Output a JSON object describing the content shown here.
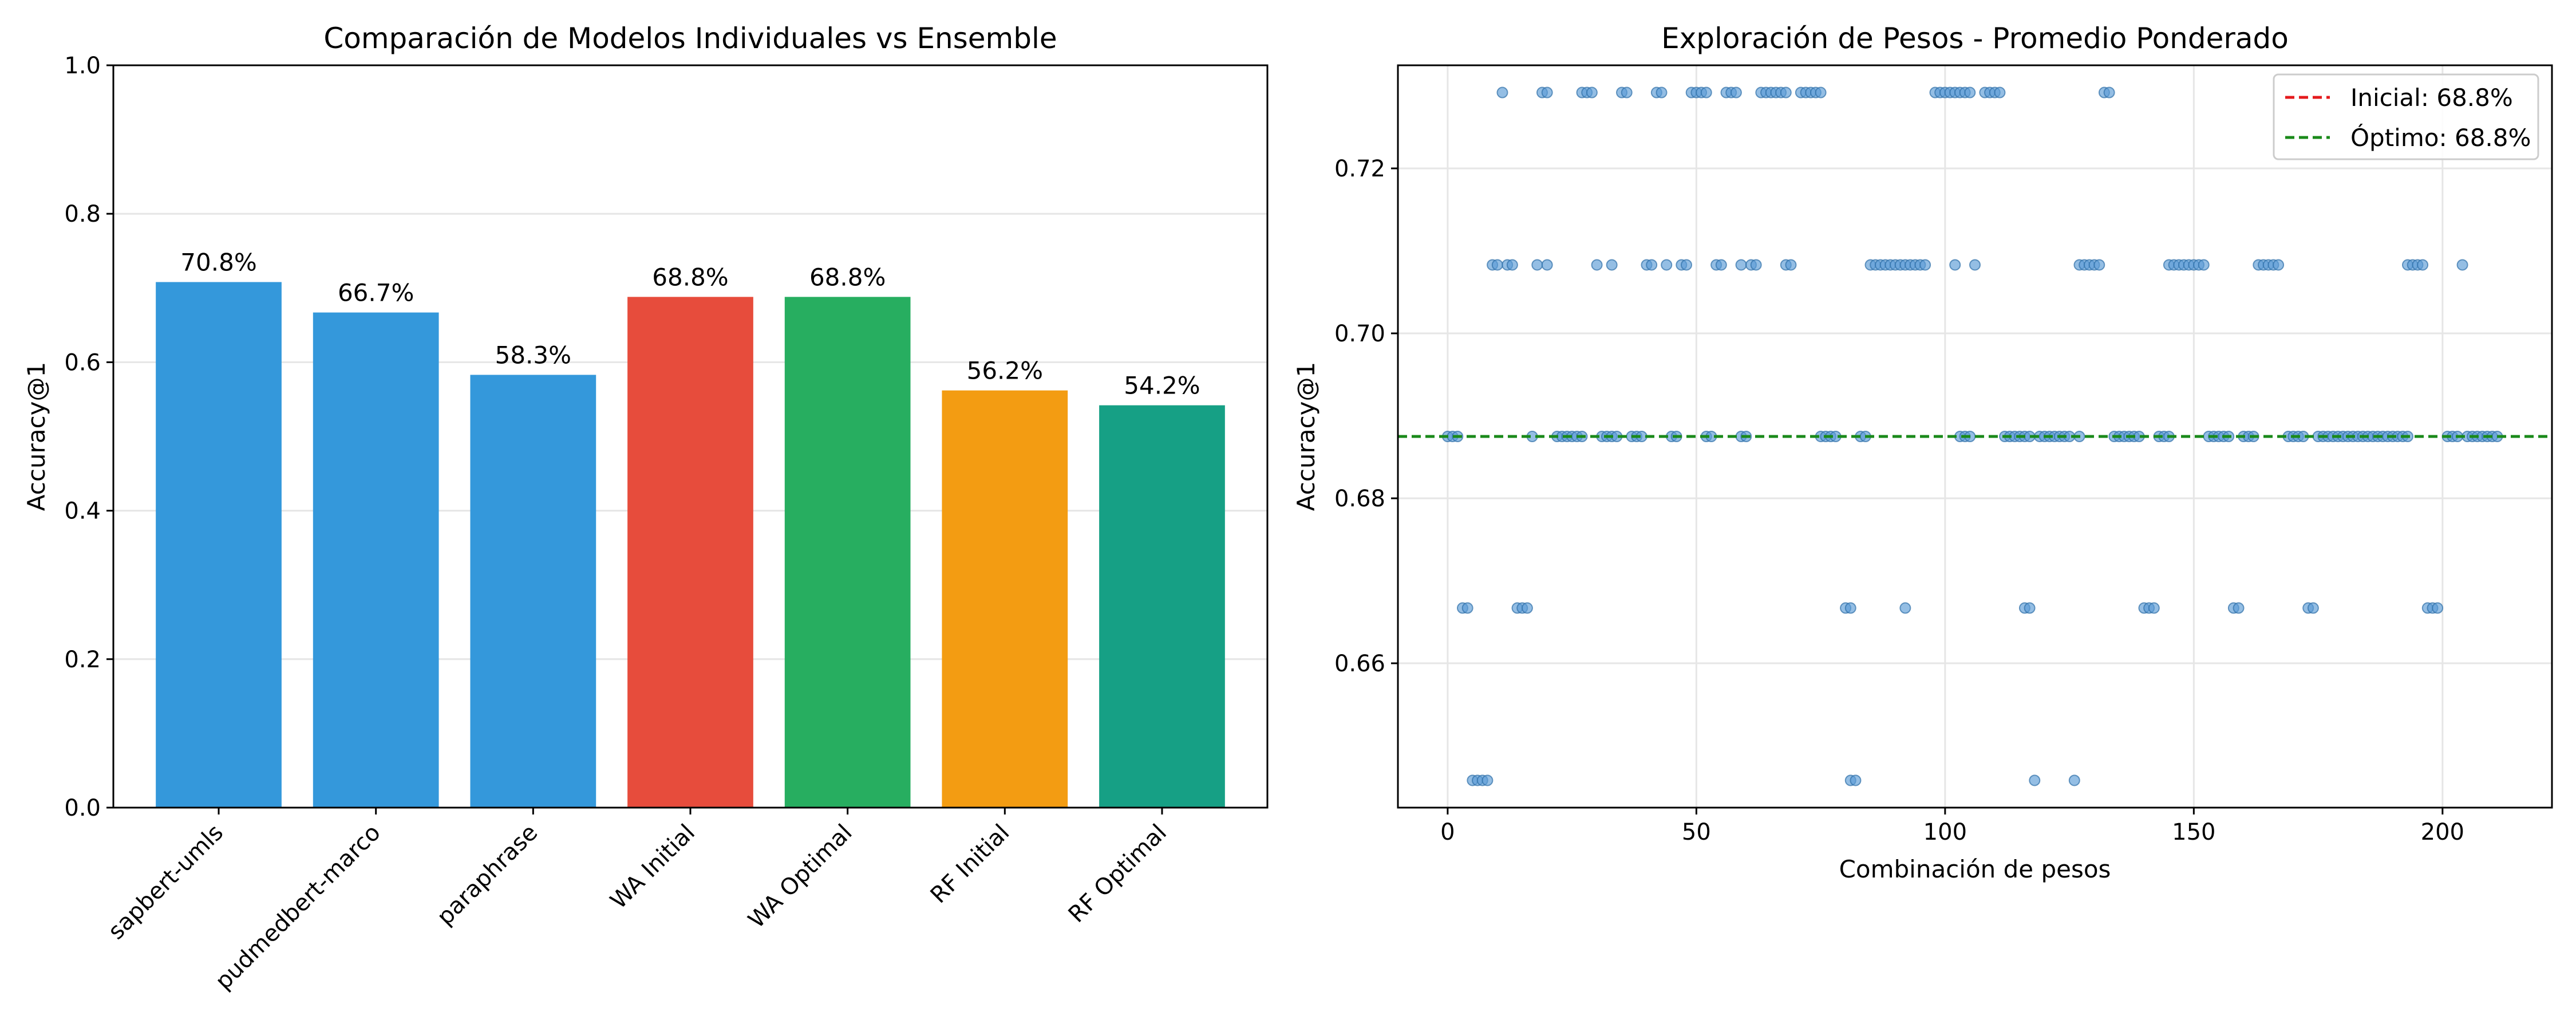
{
  "chart_data": [
    {
      "type": "bar",
      "title": "Comparación de Modelos Individuales vs Ensemble",
      "xlabel": "",
      "ylabel": "Accuracy@1",
      "ylim": [
        0,
        1.0
      ],
      "yticks": [
        "0.0",
        "0.2",
        "0.4",
        "0.6",
        "0.8",
        "1.0"
      ],
      "grid": "horizontal",
      "categories": [
        "sapbert-umls",
        "pudmedbert-marco",
        "paraphrase",
        "WA Initial",
        "WA Optimal",
        "RF Initial",
        "RF Optimal"
      ],
      "values": [
        0.708,
        0.667,
        0.583,
        0.688,
        0.688,
        0.562,
        0.542
      ],
      "value_labels": [
        "70.8%",
        "66.7%",
        "58.3%",
        "68.8%",
        "68.8%",
        "56.2%",
        "54.2%"
      ],
      "colors": [
        "#3498db",
        "#3498db",
        "#3498db",
        "#e74c3c",
        "#27ae60",
        "#f39c12",
        "#16a085"
      ]
    },
    {
      "type": "scatter",
      "title": "Exploración de Pesos - Promedio Ponderado",
      "xlabel": "Combinación de pesos",
      "ylabel": "Accuracy@1",
      "xlim": [
        -10,
        222
      ],
      "ylim": [
        0.6425,
        0.7325
      ],
      "xticks": [
        "0",
        "50",
        "100",
        "150",
        "200"
      ],
      "yticks": [
        "0.66",
        "0.68",
        "0.70",
        "0.72"
      ],
      "grid": "both",
      "legend_position": "top-right",
      "point_color": "#5a9bd5",
      "levels": [
        0.6458,
        0.6667,
        0.6875,
        0.7083,
        0.7292
      ],
      "points_by_level": [
        [
          5,
          6,
          7,
          8,
          81,
          82,
          118,
          126
        ],
        [
          3,
          4,
          14,
          15,
          16,
          80,
          81,
          92,
          116,
          117,
          140,
          141,
          142,
          158,
          159,
          173,
          174,
          197,
          198,
          199
        ],
        [
          0,
          1,
          2,
          17,
          22,
          23,
          24,
          25,
          26,
          27,
          31,
          32,
          33,
          34,
          37,
          38,
          39,
          45,
          46,
          52,
          53,
          59,
          60,
          75,
          76,
          77,
          78,
          83,
          84,
          103,
          104,
          105,
          112,
          113,
          114,
          115,
          116,
          117,
          119,
          120,
          121,
          122,
          123,
          124,
          125,
          127,
          134,
          135,
          136,
          137,
          138,
          139,
          143,
          144,
          145,
          153,
          154,
          155,
          156,
          157,
          160,
          161,
          162,
          169,
          170,
          171,
          172,
          175,
          176,
          177,
          178,
          179,
          180,
          181,
          182,
          183,
          184,
          185,
          186,
          187,
          188,
          189,
          190,
          191,
          192,
          193,
          201,
          202,
          203,
          205,
          206,
          207,
          208,
          209,
          210,
          211
        ],
        [
          9,
          10,
          12,
          13,
          18,
          20,
          30,
          33,
          40,
          41,
          44,
          47,
          48,
          54,
          55,
          59,
          61,
          62,
          68,
          69,
          85,
          86,
          87,
          88,
          89,
          90,
          91,
          92,
          93,
          94,
          95,
          96,
          102,
          106,
          127,
          128,
          129,
          130,
          131,
          145,
          146,
          147,
          148,
          149,
          150,
          151,
          152,
          163,
          164,
          165,
          166,
          167,
          193,
          194,
          195,
          196,
          204
        ],
        [
          11,
          19,
          20,
          27,
          28,
          29,
          35,
          36,
          42,
          43,
          49,
          50,
          51,
          52,
          56,
          57,
          58,
          63,
          64,
          65,
          66,
          67,
          68,
          71,
          72,
          73,
          74,
          75,
          98,
          99,
          100,
          101,
          102,
          103,
          104,
          105,
          108,
          109,
          110,
          111,
          132,
          133
        ]
      ],
      "series": [
        {
          "name": "Inicial: 68.8%",
          "y": 0.6875,
          "color": "#e41a1c",
          "style": "dashed"
        },
        {
          "name": "Óptimo: 68.8%",
          "y": 0.6875,
          "color": "#1a8a1a",
          "style": "dashed"
        }
      ]
    }
  ]
}
